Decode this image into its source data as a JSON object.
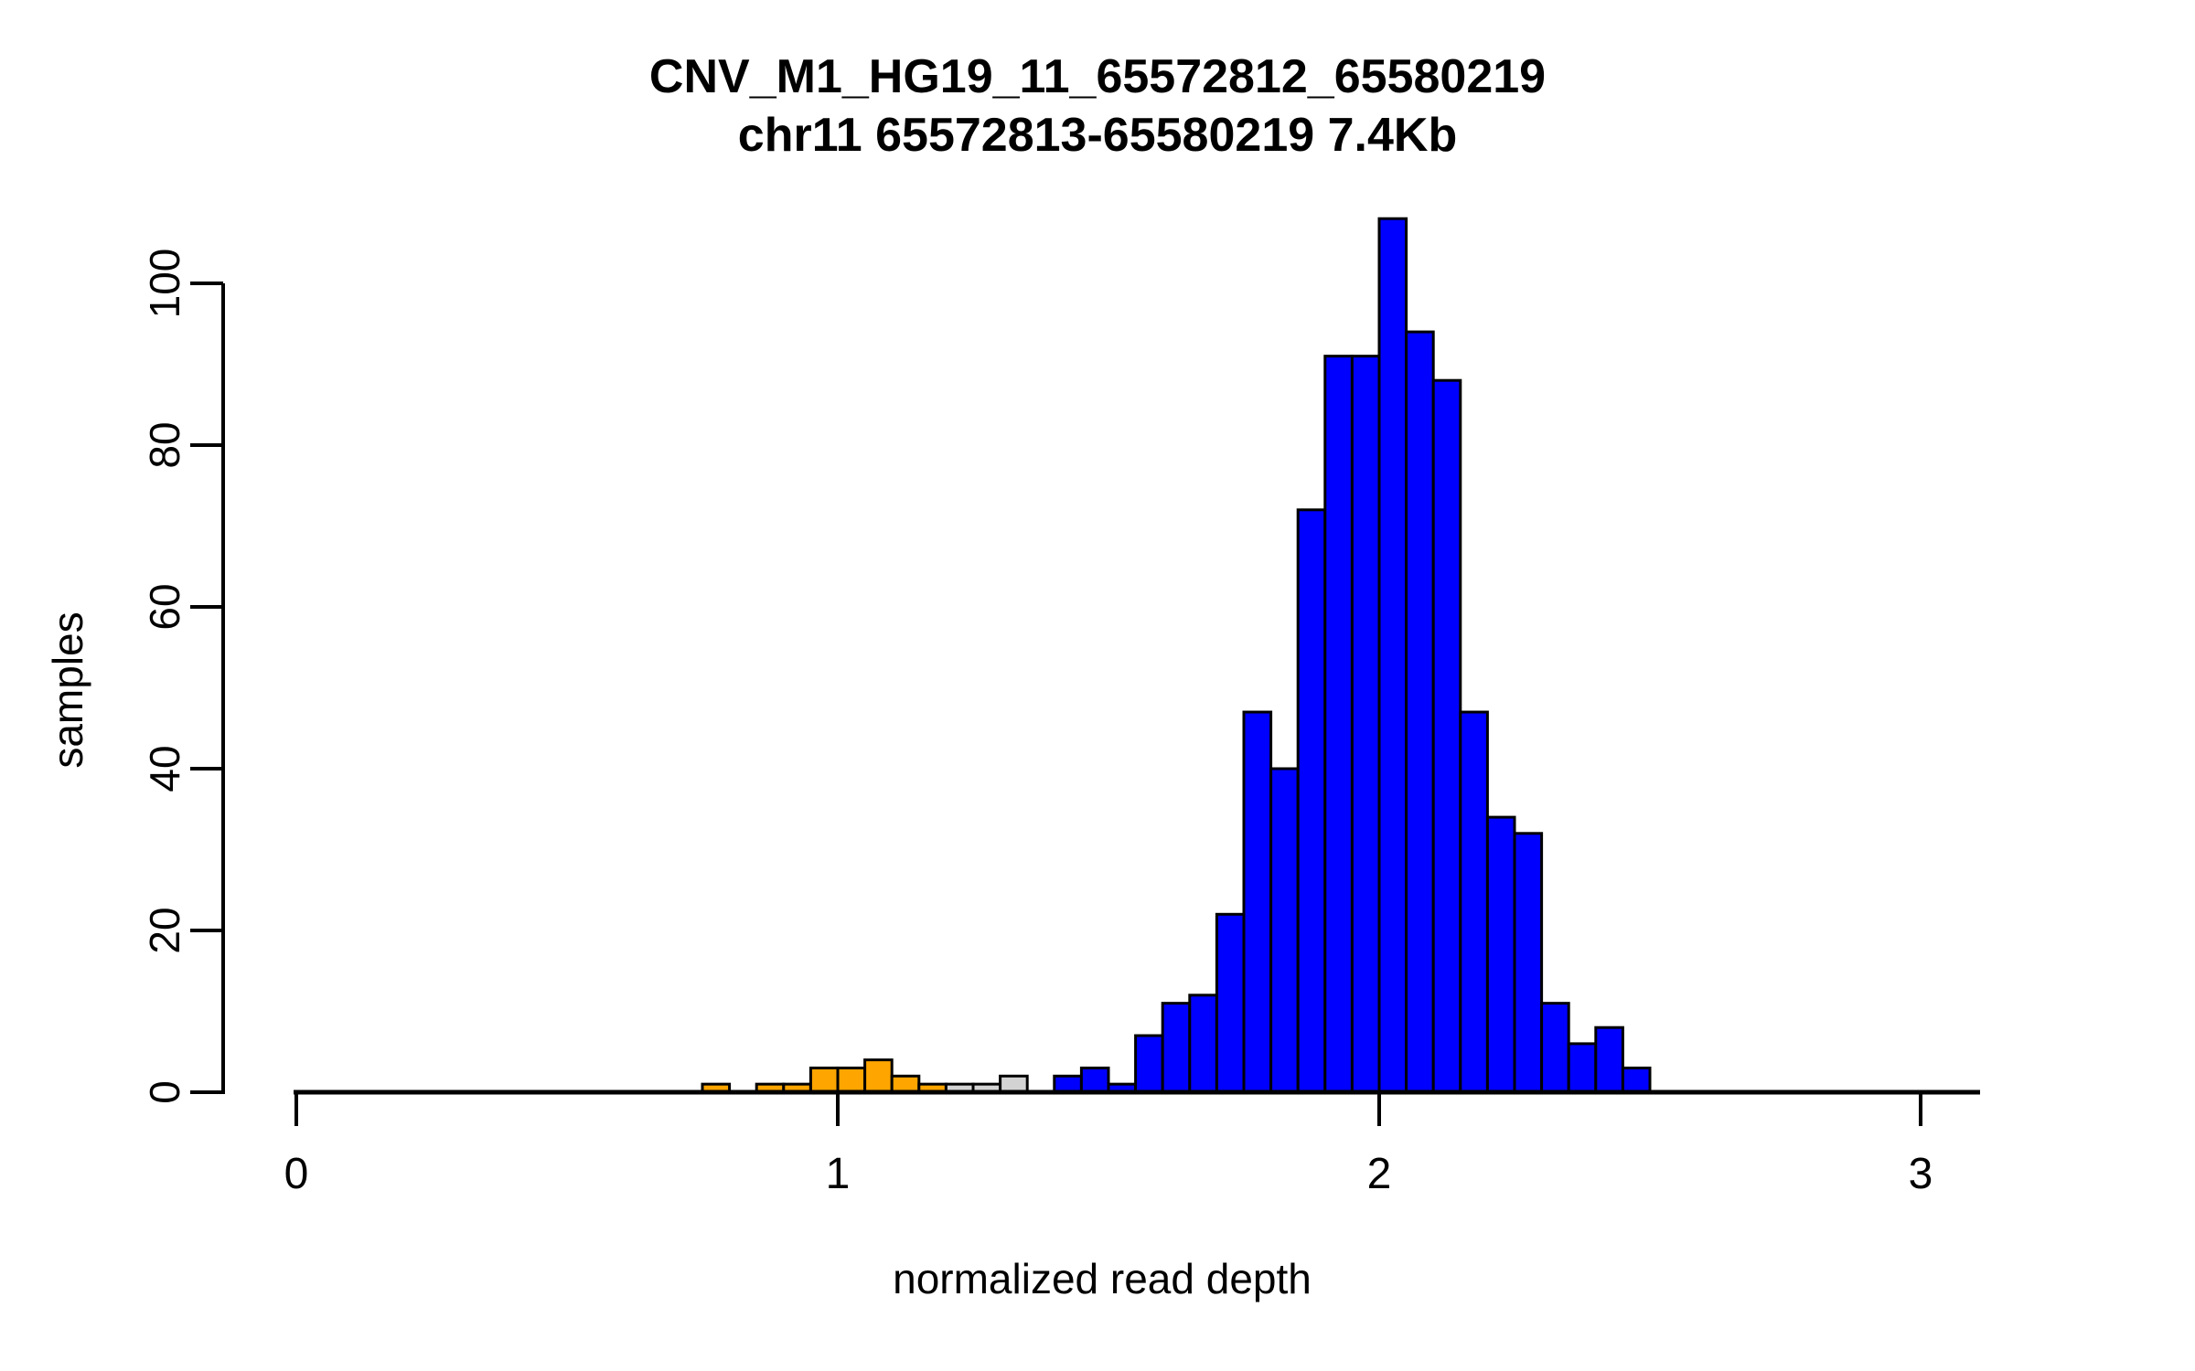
{
  "chart_data": {
    "type": "bar",
    "subtype": "histogram",
    "title": "CNV_M1_HG19_11_65572812_65580219",
    "subtitle": "chr11 65572813-65580219 7.4Kb",
    "xlabel": "normalized read depth",
    "ylabel": "samples",
    "xticks": [
      0,
      1,
      2,
      3
    ],
    "yticks": [
      0,
      20,
      40,
      60,
      80,
      100
    ],
    "xlim": [
      -0.2,
      3.15
    ],
    "ylim": [
      0,
      110
    ],
    "grid": false,
    "legend": false,
    "bin_width": 0.05,
    "colors": {
      "orange": "#FFA500",
      "gray": "#D3D3D3",
      "blue": "#0000FF",
      "axis": "#000000",
      "bar_border": "#000000"
    },
    "bins": [
      {
        "x": 0.75,
        "count": 1,
        "color": "orange"
      },
      {
        "x": 0.8,
        "count": 0,
        "color": "orange"
      },
      {
        "x": 0.85,
        "count": 1,
        "color": "orange"
      },
      {
        "x": 0.9,
        "count": 1,
        "color": "orange"
      },
      {
        "x": 0.95,
        "count": 3,
        "color": "orange"
      },
      {
        "x": 1.0,
        "count": 3,
        "color": "orange"
      },
      {
        "x": 1.05,
        "count": 4,
        "color": "orange"
      },
      {
        "x": 1.1,
        "count": 2,
        "color": "orange"
      },
      {
        "x": 1.15,
        "count": 1,
        "color": "orange"
      },
      {
        "x": 1.2,
        "count": 1,
        "color": "gray"
      },
      {
        "x": 1.25,
        "count": 1,
        "color": "gray"
      },
      {
        "x": 1.3,
        "count": 2,
        "color": "gray"
      },
      {
        "x": 1.35,
        "count": 0,
        "color": "gray"
      },
      {
        "x": 1.4,
        "count": 2,
        "color": "blue"
      },
      {
        "x": 1.45,
        "count": 3,
        "color": "blue"
      },
      {
        "x": 1.5,
        "count": 1,
        "color": "blue"
      },
      {
        "x": 1.55,
        "count": 7,
        "color": "blue"
      },
      {
        "x": 1.6,
        "count": 11,
        "color": "blue"
      },
      {
        "x": 1.65,
        "count": 12,
        "color": "blue"
      },
      {
        "x": 1.7,
        "count": 22,
        "color": "blue"
      },
      {
        "x": 1.75,
        "count": 47,
        "color": "blue"
      },
      {
        "x": 1.8,
        "count": 40,
        "color": "blue"
      },
      {
        "x": 1.85,
        "count": 72,
        "color": "blue"
      },
      {
        "x": 1.9,
        "count": 91,
        "color": "blue"
      },
      {
        "x": 1.95,
        "count": 91,
        "color": "blue"
      },
      {
        "x": 2.0,
        "count": 108,
        "color": "blue"
      },
      {
        "x": 2.05,
        "count": 94,
        "color": "blue"
      },
      {
        "x": 2.1,
        "count": 88,
        "color": "blue"
      },
      {
        "x": 2.15,
        "count": 47,
        "color": "blue"
      },
      {
        "x": 2.2,
        "count": 34,
        "color": "blue"
      },
      {
        "x": 2.25,
        "count": 32,
        "color": "blue"
      },
      {
        "x": 2.3,
        "count": 11,
        "color": "blue"
      },
      {
        "x": 2.35,
        "count": 6,
        "color": "blue"
      },
      {
        "x": 2.4,
        "count": 8,
        "color": "blue"
      },
      {
        "x": 2.45,
        "count": 3,
        "color": "blue"
      }
    ]
  }
}
